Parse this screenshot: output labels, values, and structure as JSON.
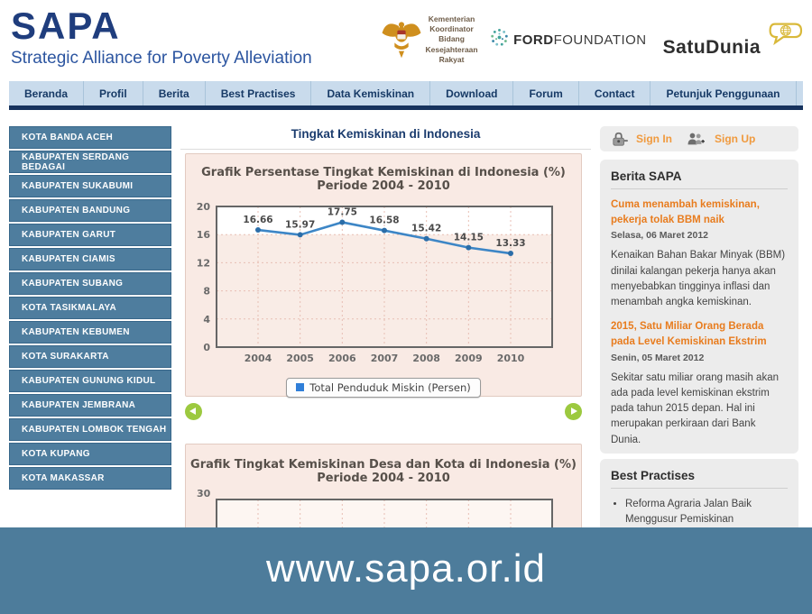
{
  "header": {
    "logo_title": "SAPA",
    "logo_subtitle": "Strategic Alliance for Poverty Alleviation",
    "ministry_line1": "Kementerian Koordinator",
    "ministry_line2": "Bidang Kesejahteraan Rakyat",
    "ford_bold": "FORD",
    "ford_rest": "FOUNDATION",
    "satudunia_label": "SatuDunia"
  },
  "nav": {
    "items": [
      "Beranda",
      "Profil",
      "Berita",
      "Best Practises",
      "Data Kemiskinan",
      "Download",
      "Forum",
      "Contact",
      "Petunjuk Penggunaan"
    ]
  },
  "sidebar": {
    "items": [
      "KOTA BANDA ACEH",
      "KABUPATEN SERDANG BEDAGAI",
      "KABUPATEN SUKABUMI",
      "KABUPATEN BANDUNG",
      "KABUPATEN GARUT",
      "KABUPATEN CIAMIS",
      "KABUPATEN SUBANG",
      "KOTA TASIKMALAYA",
      "KABUPATEN KEBUMEN",
      "KOTA SURAKARTA",
      "KABUPATEN GUNUNG KIDUL",
      "KABUPATEN JEMBRANA",
      "KABUPATEN LOMBOK TENGAH",
      "KOTA KUPANG",
      "KOTA MAKASSAR"
    ]
  },
  "main": {
    "page_title": "Tingkat Kemiskinan di Indonesia"
  },
  "right": {
    "signin_label": "Sign In",
    "signup_label": "Sign Up",
    "berita": {
      "title": "Berita SAPA",
      "items": [
        {
          "title": "Cuma menambah kemiskinan, pekerja tolak BBM naik",
          "date": "Selasa, 06 Maret 2012",
          "body": "Kenaikan Bahan Bakar Minyak (BBM) dinilai kalangan pekerja hanya akan menyebabkan tingginya inflasi dan menambah angka kemiskinan."
        },
        {
          "title": "2015, Satu Miliar Orang Berada pada Level Kemiskinan Ekstrim",
          "date": "Senin, 05 Maret 2012",
          "body": "Sekitar satu miliar orang masih akan ada pada level kemiskinan ekstrim pada tahun 2015 depan. Hal ini merupakan perkiraan dari Bank Dunia."
        }
      ]
    },
    "best_practises": {
      "title": "Best Practises",
      "items": [
        "Reforma Agraria Jalan Baik Menggusur Pemiskinan"
      ]
    }
  },
  "footer": {
    "url": "www.sapa.or.id"
  },
  "colors": {
    "navy": "#1b3c6e",
    "nav_bg": "#c9dbec",
    "sidebar_button": "#4e7d9e",
    "panel_pink": "#f9eae4",
    "news_bg": "#ececec",
    "orange_link": "#e87c1e",
    "green_arrow": "#9cc93f",
    "footer_band": "#4d7c9b",
    "line_blue": "#3d86c6"
  },
  "chart_data": [
    {
      "type": "line",
      "title": "Grafik Persentase Tingkat Kemiskinan di Indonesia (%)",
      "subtitle": "Periode 2004 - 2010",
      "categories": [
        "2004",
        "2005",
        "2006",
        "2007",
        "2008",
        "2009",
        "2010"
      ],
      "series": [
        {
          "name": "Total Penduduk Miskin (Persen)",
          "values": [
            16.66,
            15.97,
            17.75,
            16.58,
            15.42,
            14.15,
            13.33
          ]
        }
      ],
      "ylim": [
        0,
        20
      ],
      "yticks": [
        0,
        4,
        8,
        12,
        16,
        20
      ],
      "grid": true,
      "legend_position": "bottom",
      "line_color": "#3d86c6"
    },
    {
      "type": "line",
      "title": "Grafik Tingkat Kemiskinan Desa dan Kota di Indonesia (%)",
      "subtitle": "Periode 2004 - 2010",
      "visible_ytick": "30",
      "partially_visible": true
    }
  ]
}
